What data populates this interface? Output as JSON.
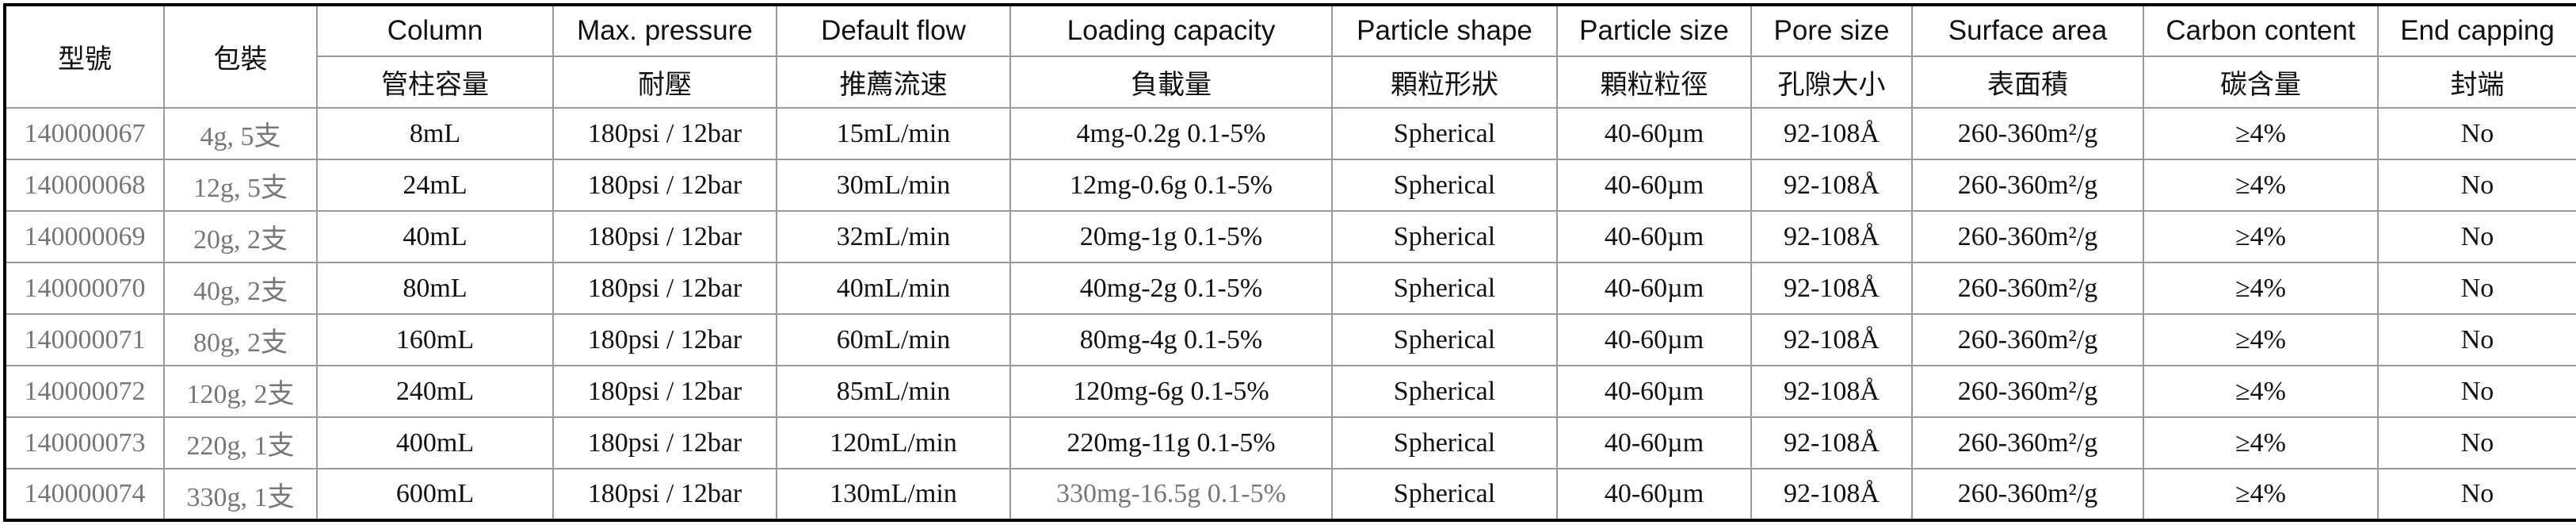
{
  "table": {
    "columns": [
      {
        "zh": "型號"
      },
      {
        "zh": "包裝"
      },
      {
        "en": "Column",
        "zh": "管柱容量"
      },
      {
        "en": "Max. pressure",
        "zh": "耐壓"
      },
      {
        "en": "Default flow",
        "zh": "推薦流速"
      },
      {
        "en": "Loading capacity",
        "zh": "負載量"
      },
      {
        "en": "Particle shape",
        "zh": "顆粒形狀"
      },
      {
        "en": "Particle size",
        "zh": "顆粒粒徑"
      },
      {
        "en": "Pore size",
        "zh": "孔隙大小"
      },
      {
        "en": "Surface area",
        "zh": "表面積"
      },
      {
        "en": "Carbon content",
        "zh": "碳含量"
      },
      {
        "en": "End capping",
        "zh": "封端"
      }
    ],
    "rows": [
      [
        "140000067",
        "4g, 5支",
        "8mL",
        "180psi / 12bar",
        "15mL/min",
        "4mg-0.2g 0.1-5%",
        "Spherical",
        "40-60µm",
        "92-108Å",
        "260-360m²/g",
        "≥4%",
        "No"
      ],
      [
        "140000068",
        "12g, 5支",
        "24mL",
        "180psi / 12bar",
        "30mL/min",
        "12mg-0.6g 0.1-5%",
        "Spherical",
        "40-60µm",
        "92-108Å",
        "260-360m²/g",
        "≥4%",
        "No"
      ],
      [
        "140000069",
        "20g, 2支",
        "40mL",
        "180psi / 12bar",
        "32mL/min",
        "20mg-1g 0.1-5%",
        "Spherical",
        "40-60µm",
        "92-108Å",
        "260-360m²/g",
        "≥4%",
        "No"
      ],
      [
        "140000070",
        "40g, 2支",
        "80mL",
        "180psi / 12bar",
        "40mL/min",
        "40mg-2g 0.1-5%",
        "Spherical",
        "40-60µm",
        "92-108Å",
        "260-360m²/g",
        "≥4%",
        "No"
      ],
      [
        "140000071",
        "80g, 2支",
        "160mL",
        "180psi / 12bar",
        "60mL/min",
        "80mg-4g 0.1-5%",
        "Spherical",
        "40-60µm",
        "92-108Å",
        "260-360m²/g",
        "≥4%",
        "No"
      ],
      [
        "140000072",
        "120g, 2支",
        "240mL",
        "180psi / 12bar",
        "85mL/min",
        "120mg-6g 0.1-5%",
        "Spherical",
        "40-60µm",
        "92-108Å",
        "260-360m²/g",
        "≥4%",
        "No"
      ],
      [
        "140000073",
        "220g, 1支",
        "400mL",
        "180psi / 12bar",
        "120mL/min",
        "220mg-11g 0.1-5%",
        "Spherical",
        "40-60µm",
        "92-108Å",
        "260-360m²/g",
        "≥4%",
        "No"
      ],
      [
        "140000074",
        "330g, 1支",
        "600mL",
        "180psi / 12bar",
        "130mL/min",
        "330mg-16.5g 0.1-5%",
        "Spherical",
        "40-60µm",
        "92-108Å",
        "260-360m²/g",
        "≥4%",
        "No"
      ]
    ]
  }
}
